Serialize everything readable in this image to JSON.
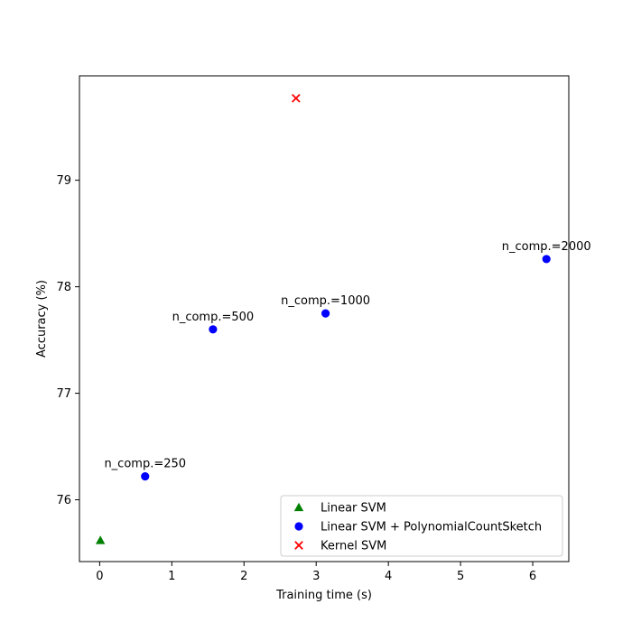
{
  "chart_data": {
    "type": "scatter",
    "xlabel": "Training time (s)",
    "ylabel": "Accuracy (%)",
    "xlim": [
      -0.28,
      6.5
    ],
    "ylim": [
      75.42,
      79.98
    ],
    "xticks": [
      0,
      1,
      2,
      3,
      4,
      5,
      6
    ],
    "yticks": [
      76,
      77,
      78,
      79
    ],
    "grid": false,
    "legend_position": "lower-right",
    "series": [
      {
        "name": "Linear SVM",
        "marker": "triangle",
        "color": "#008000",
        "points": [
          {
            "x": 0.01,
            "y": 75.62
          }
        ]
      },
      {
        "name": "Linear SVM + PolynomialCountSketch",
        "marker": "circle",
        "color": "#0000ff",
        "points": [
          {
            "x": 0.63,
            "y": 76.22,
            "label": "n_comp.=250"
          },
          {
            "x": 1.57,
            "y": 77.6,
            "label": "n_comp.=500"
          },
          {
            "x": 3.13,
            "y": 77.75,
            "label": "n_comp.=1000"
          },
          {
            "x": 6.19,
            "y": 78.26,
            "label": "n_comp.=2000"
          }
        ]
      },
      {
        "name": "Kernel SVM",
        "marker": "x",
        "color": "#ff0000",
        "points": [
          {
            "x": 2.72,
            "y": 79.77
          }
        ]
      }
    ]
  }
}
